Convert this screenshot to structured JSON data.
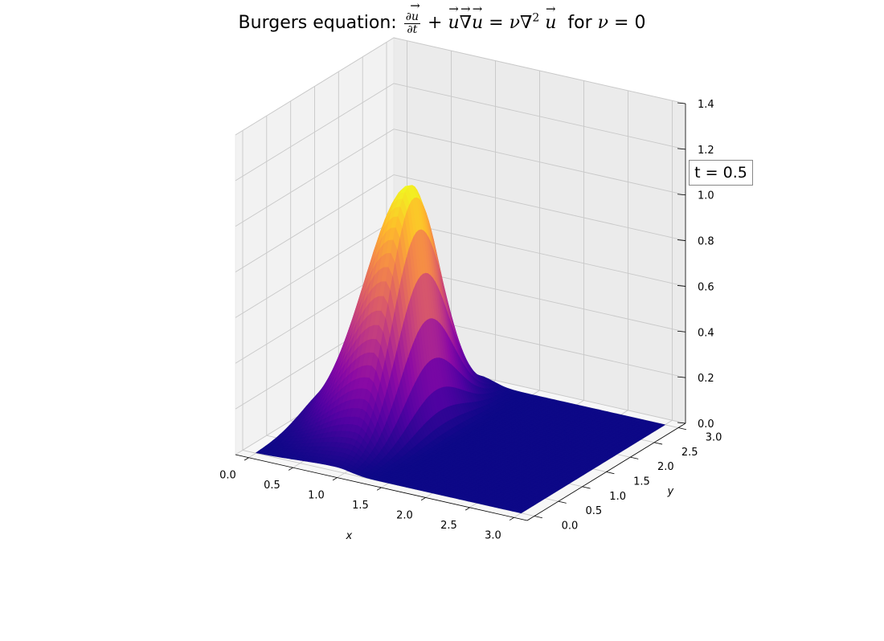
{
  "chart_data": {
    "type": "surface3d",
    "title_prefix": "Burgers equation:",
    "title_suffix": "for",
    "title_nu_value": "0",
    "annotation": "t = 0.5",
    "xlabel": "x",
    "ylabel": "y",
    "zlabel": "",
    "xlim": [
      -0.15,
      3.15
    ],
    "ylim": [
      -0.15,
      3.15
    ],
    "zlim": [
      0.0,
      1.4
    ],
    "x_ticks": [
      "0.0",
      "0.5",
      "1.0",
      "1.5",
      "2.0",
      "2.5",
      "3.0"
    ],
    "y_ticks": [
      "0.0",
      "0.5",
      "1.0",
      "1.5",
      "2.0",
      "2.5",
      "3.0"
    ],
    "z_ticks": [
      "0.0",
      "0.2",
      "0.4",
      "0.6",
      "0.8",
      "1.0",
      "1.2",
      "1.4"
    ],
    "colormap": "plasma",
    "floor_color": "#0d0887",
    "peak_color": "#f0f921",
    "surface_peak": {
      "x": 0.9,
      "y": 1.55,
      "z": 1.05
    },
    "grid": true
  }
}
